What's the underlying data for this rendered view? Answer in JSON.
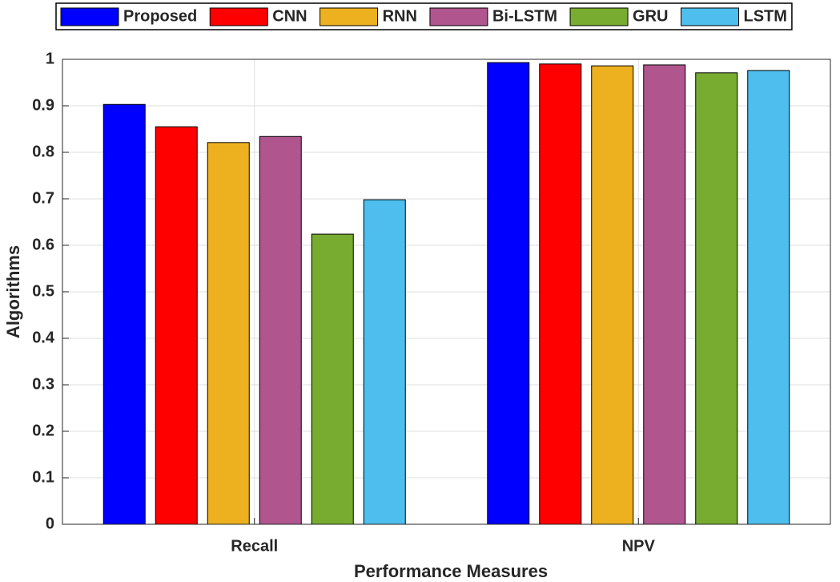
{
  "chart_data": {
    "type": "bar",
    "categories": [
      "Recall",
      "NPV"
    ],
    "series": [
      {
        "name": "Proposed",
        "color": "#0000ff",
        "values": [
          0.903,
          0.993
        ]
      },
      {
        "name": "CNN",
        "color": "#ff0000",
        "values": [
          0.855,
          0.99
        ]
      },
      {
        "name": "RNN",
        "color": "#edb120",
        "values": [
          0.821,
          0.986
        ]
      },
      {
        "name": "Bi-LSTM",
        "color": "#b0558e",
        "values": [
          0.834,
          0.988
        ]
      },
      {
        "name": "GRU",
        "color": "#77ac30",
        "values": [
          0.624,
          0.971
        ]
      },
      {
        "name": "LSTM",
        "color": "#4dbeee",
        "values": [
          0.698,
          0.976
        ]
      }
    ],
    "x_label": "Performance Measures",
    "y_label": "Algorithms",
    "ylim": [
      0,
      1
    ],
    "yticks": [
      0,
      0.1,
      0.2,
      0.3,
      0.4,
      0.5,
      0.6,
      0.7,
      0.8,
      0.9,
      1
    ],
    "grid": true,
    "legend": "top"
  }
}
